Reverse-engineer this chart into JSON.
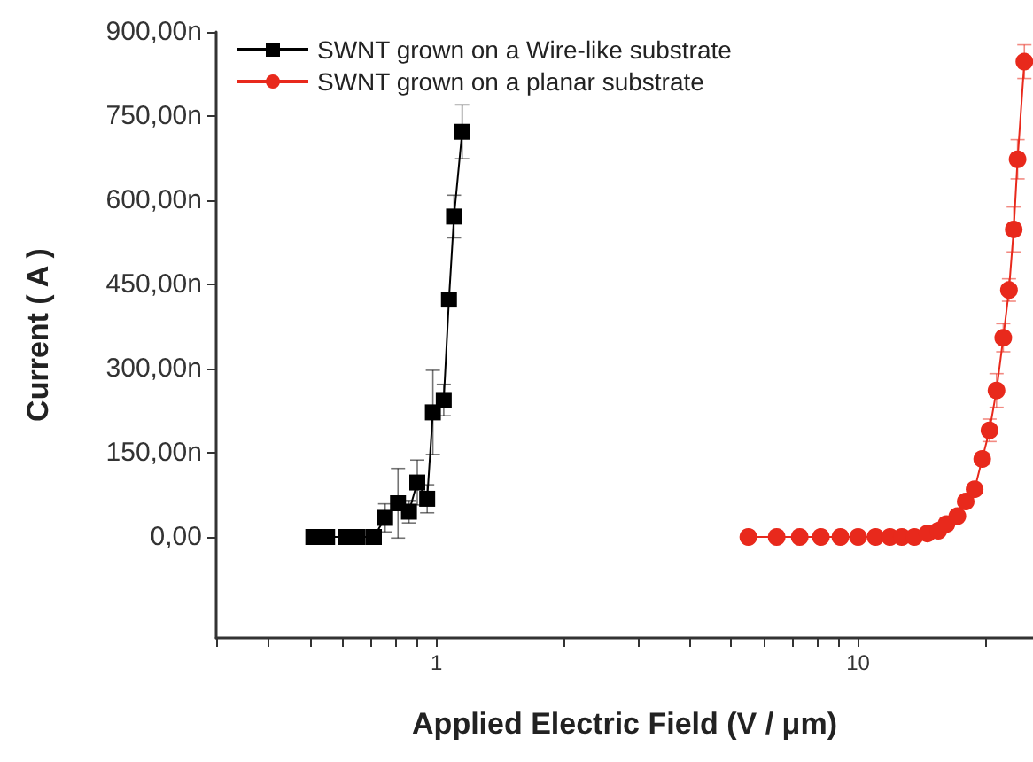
{
  "chart_data": {
    "type": "line",
    "xlabel": "Applied Electric Field (V / μm)",
    "ylabel": "Current ( A )",
    "log": "x",
    "legend": "top left",
    "grid": false,
    "xlim": [
      0.3,
      26
    ],
    "xticks": [
      {
        "value": 0.3,
        "label": null
      },
      {
        "value": 0.4,
        "label": null
      },
      {
        "value": 0.5,
        "label": null
      },
      {
        "value": 0.6,
        "label": null
      },
      {
        "value": 0.7,
        "label": null
      },
      {
        "value": 0.8,
        "label": null
      },
      {
        "value": 0.9,
        "label": null
      },
      1,
      {
        "value": 2,
        "label": null
      },
      {
        "value": 3,
        "label": null
      },
      {
        "value": 4,
        "label": null
      },
      {
        "value": 5,
        "label": null
      },
      {
        "value": 6,
        "label": null
      },
      {
        "value": 7,
        "label": null
      },
      {
        "value": 8,
        "label": null
      },
      {
        "value": 9,
        "label": null
      },
      10,
      {
        "value": 20,
        "label": null
      }
    ],
    "ylim": [
      -180,
      900
    ],
    "yticks": [
      {
        "value": 0,
        "label": "0,00"
      },
      {
        "value": 150,
        "label": "150,00n"
      },
      {
        "value": 300,
        "label": "300,00n"
      },
      {
        "value": 450,
        "label": "450,00n"
      },
      {
        "value": 600,
        "label": "600,00n"
      },
      {
        "value": 750,
        "label": "750,00n"
      },
      {
        "value": 900,
        "label": "900,00n"
      }
    ],
    "series": [
      {
        "name": "SWNT grown on a Wire-like substrate",
        "color": "#000000",
        "marker": "square",
        "x": [
          0.51,
          0.55,
          0.61,
          0.65,
          0.71,
          0.755,
          0.81,
          0.86,
          0.9,
          0.95,
          0.98,
          1.04,
          1.07,
          1.1,
          1.15
        ],
        "values": [
          0,
          0,
          0,
          0,
          0,
          34,
          60,
          45,
          97,
          68,
          222,
          244,
          423,
          571,
          722
        ],
        "errors": [
          null,
          null,
          null,
          null,
          null,
          25,
          62,
          20,
          40,
          25,
          75,
          28,
          null,
          38,
          48
        ]
      },
      {
        "name": "SWNT grown on a planar substrate",
        "color": "#e8291c",
        "marker": "circle",
        "x": [
          5.49,
          6.41,
          7.27,
          8.16,
          9.08,
          10.0,
          11.0,
          11.9,
          12.7,
          13.6,
          14.6,
          15.5,
          16.2,
          17.2,
          18.0,
          18.9,
          19.7,
          20.5,
          21.3,
          22.1,
          22.8,
          23.4,
          23.9,
          24.8
        ],
        "values": [
          0,
          0,
          0,
          0,
          0,
          0,
          0,
          0,
          0,
          0,
          6,
          11,
          23,
          37,
          63,
          85,
          139,
          190,
          261,
          355,
          440,
          548,
          673,
          847
        ],
        "errors": [
          null,
          null,
          null,
          null,
          null,
          null,
          null,
          null,
          null,
          null,
          null,
          null,
          null,
          null,
          null,
          null,
          10,
          20,
          30,
          25,
          20,
          40,
          35,
          30
        ]
      }
    ]
  }
}
